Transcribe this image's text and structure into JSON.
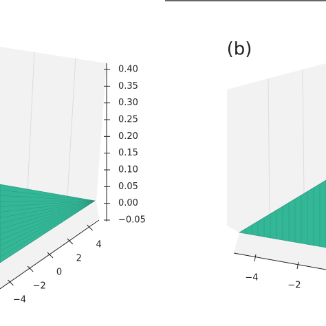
{
  "chart_data": [
    {
      "type": "surface",
      "color": "#33b797",
      "zlim": [
        -0.05,
        0.4
      ],
      "zticks": [
        {
          "value": 0.4,
          "label": "0.40"
        },
        {
          "value": 0.35,
          "label": "0.35"
        },
        {
          "value": 0.3,
          "label": "0.30"
        },
        {
          "value": 0.25,
          "label": "0.25"
        },
        {
          "value": 0.2,
          "label": "0.20"
        },
        {
          "value": 0.15,
          "label": "0.15"
        },
        {
          "value": 0.1,
          "label": "0.10"
        },
        {
          "value": 0.05,
          "label": "0.05"
        },
        {
          "value": 0,
          "label": "0.00"
        },
        {
          "value": -0.05,
          "label": "−0.05"
        }
      ],
      "ylim": [
        -5,
        5
      ],
      "yticks": [
        {
          "value": -4,
          "label": "−4"
        },
        {
          "value": -2,
          "label": "−2"
        },
        0,
        2,
        4
      ]
    },
    {
      "type": "surface",
      "title": "(b)",
      "color": "#33b797",
      "xlim": [
        -5,
        5
      ],
      "xticks": [
        {
          "value": -4,
          "label": "−4"
        },
        {
          "value": -2,
          "label": "−2"
        }
      ]
    }
  ]
}
